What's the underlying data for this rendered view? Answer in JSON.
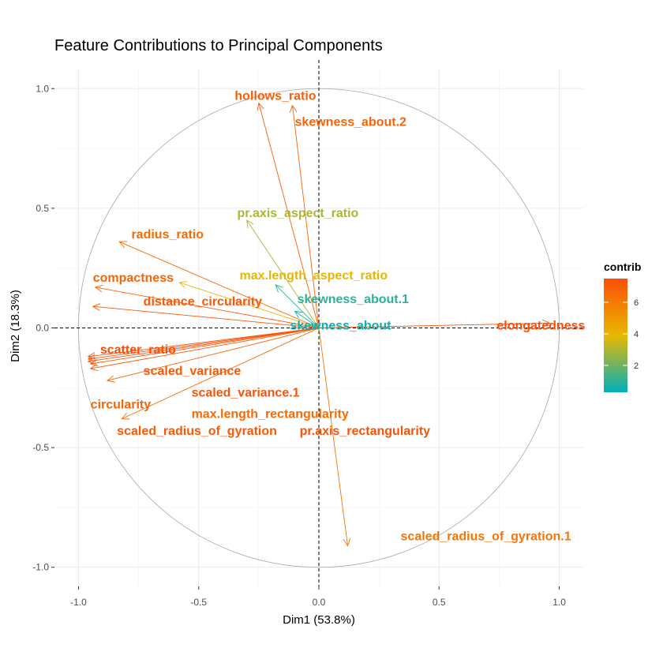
{
  "chart_data": {
    "type": "scatter",
    "title": "Feature Contributions to Principal Components",
    "xlabel": "Dim1 (53.8%)",
    "ylabel": "Dim2 (18.3%)",
    "xlim": [
      -1.1,
      1.1
    ],
    "ylim": [
      -1.08,
      1.08
    ],
    "x_ticks": [
      -1.0,
      -0.5,
      0.0,
      0.5,
      1.0
    ],
    "x_tick_labels": [
      "-1.0",
      "-0.5",
      "0.0",
      "0.5",
      "1.0"
    ],
    "y_ticks": [
      -1.0,
      -0.5,
      0.0,
      0.5,
      1.0
    ],
    "y_tick_labels": [
      "-1.0",
      "-0.5",
      "0.0",
      "0.5",
      "1.0"
    ],
    "grid": true,
    "unit_circle": true,
    "legend": {
      "title": "contrib",
      "placement": "right",
      "range": [
        0.3,
        7.5
      ],
      "ticks": [
        2,
        4,
        6
      ],
      "tick_labels": [
        "2",
        "4",
        "6"
      ],
      "colors": [
        "#00AFBB",
        "#E7B800",
        "#FC4E07"
      ]
    },
    "variables": [
      {
        "name": "hollows_ratio",
        "x": -0.25,
        "y": 0.94,
        "contrib": 7.0,
        "lx": -0.35,
        "ly": 0.97
      },
      {
        "name": "skewness_about.2",
        "x": -0.11,
        "y": 0.93,
        "contrib": 6.8,
        "lx": -0.1,
        "ly": 0.86
      },
      {
        "name": "pr.axis_aspect_ratio",
        "x": -0.3,
        "y": 0.45,
        "contrib": 3.0,
        "lx": -0.34,
        "ly": 0.48
      },
      {
        "name": "radius_ratio",
        "x": -0.83,
        "y": 0.36,
        "contrib": 6.5,
        "lx": -0.78,
        "ly": 0.39
      },
      {
        "name": "max.length_aspect_ratio",
        "x": -0.58,
        "y": 0.19,
        "contrib": 4.0,
        "lx": -0.33,
        "ly": 0.22
      },
      {
        "name": "compactness",
        "x": -0.93,
        "y": 0.17,
        "contrib": 6.8,
        "lx": -0.94,
        "ly": 0.21
      },
      {
        "name": "skewness_about.1",
        "x": -0.18,
        "y": 0.18,
        "contrib": 1.0,
        "lx": -0.09,
        "ly": 0.12
      },
      {
        "name": "distance_circularity",
        "x": -0.94,
        "y": 0.09,
        "contrib": 7.2,
        "lx": -0.73,
        "ly": 0.11
      },
      {
        "name": "skewness_about",
        "x": -0.1,
        "y": 0.07,
        "contrib": 0.5,
        "lx": -0.12,
        "ly": 0.01
      },
      {
        "name": "elongatedness",
        "x": 0.96,
        "y": 0.02,
        "contrib": 7.5,
        "lx": 0.74,
        "ly": 0.01
      },
      {
        "name": "scatter_ratio",
        "x": -0.96,
        "y": -0.12,
        "contrib": 7.5,
        "lx": -0.91,
        "ly": -0.09
      },
      {
        "name": "scaled_variance",
        "x": -0.95,
        "y": -0.15,
        "contrib": 7.2,
        "lx": -0.73,
        "ly": -0.18
      },
      {
        "name": "scaled_variance.1",
        "x": -0.96,
        "y": -0.14,
        "contrib": 7.4,
        "lx": -0.53,
        "ly": -0.27
      },
      {
        "name": "circularity",
        "x": -0.88,
        "y": -0.22,
        "contrib": 6.8,
        "lx": -0.95,
        "ly": -0.32
      },
      {
        "name": "max.length_rectangularity",
        "x": -0.82,
        "y": -0.38,
        "contrib": 6.5,
        "lx": -0.53,
        "ly": -0.36
      },
      {
        "name": "scaled_radius_of_gyration",
        "x": -0.95,
        "y": -0.17,
        "contrib": 7.2,
        "lx": -0.84,
        "ly": -0.43
      },
      {
        "name": "pr.axis_rectangularity",
        "x": -0.96,
        "y": -0.13,
        "contrib": 7.4,
        "lx": -0.08,
        "ly": -0.43
      },
      {
        "name": "scaled_radius_of_gyration.1",
        "x": 0.12,
        "y": -0.91,
        "contrib": 6.2,
        "lx": 0.34,
        "ly": -0.87
      }
    ]
  }
}
